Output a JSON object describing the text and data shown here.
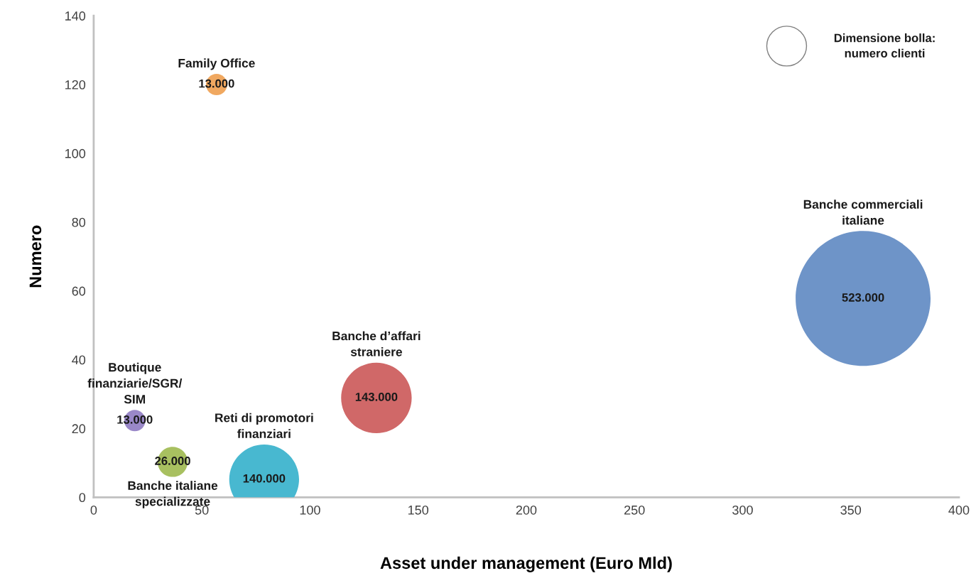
{
  "chart_data": {
    "type": "bubble",
    "xlabel": "Asset under management (Euro Mld)",
    "ylabel": "Numero",
    "x": [
      56.8,
      19,
      36.5,
      78.8,
      130.7,
      355.7
    ],
    "values": [
      120,
      22.3,
      10.3,
      5.2,
      28.9,
      57.8
    ],
    "sizes": [
      13000,
      13000,
      26000,
      140000,
      143000,
      523000
    ],
    "value_labels": [
      "13.000",
      "13.000",
      "26.000",
      "140.000",
      "143.000",
      "523.000"
    ],
    "colors": [
      "#f0a860",
      "#9a88c8",
      "#a8c060",
      "#48b8d0",
      "#d06868",
      "#6e94c8"
    ],
    "xlim": [
      0,
      400
    ],
    "xticks": [
      0,
      50,
      100,
      150,
      200,
      250,
      300,
      350,
      400
    ],
    "ylim": [
      0,
      140
    ],
    "yticks": [
      0,
      20,
      40,
      60,
      80,
      100,
      120,
      140
    ],
    "grid": false,
    "legend": false,
    "annotations": [
      "Family Office",
      "Boutique\nfinanziarie/SGR/\nSIM",
      "Banche italiane\nspecializzate",
      "Reti di promotori\nfinanziari",
      "Banche d’affari\nstraniere",
      "Banche commerciali\nitaliane",
      "Dimensione bolla:\nnumero clienti"
    ]
  }
}
